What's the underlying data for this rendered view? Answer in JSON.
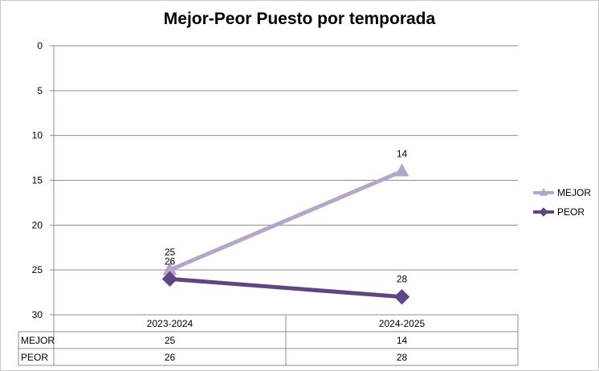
{
  "chart_data": {
    "type": "line",
    "title": "Mejor-Peor Puesto por temporada",
    "categories": [
      "2023-2024",
      "2024-2025"
    ],
    "series": [
      {
        "name": "MEJOR",
        "values": [
          25,
          14
        ],
        "color": "#b3a6c9",
        "marker": "triangle"
      },
      {
        "name": "PEOR",
        "values": [
          26,
          28
        ],
        "color": "#5f4582",
        "marker": "diamond"
      }
    ],
    "ylim": [
      0,
      30
    ],
    "y_reversed": true,
    "y_ticks": [
      0,
      5,
      10,
      15,
      20,
      25,
      30
    ],
    "grid": true,
    "legend_position": "right",
    "data_table": true,
    "xlabel": "",
    "ylabel": ""
  }
}
